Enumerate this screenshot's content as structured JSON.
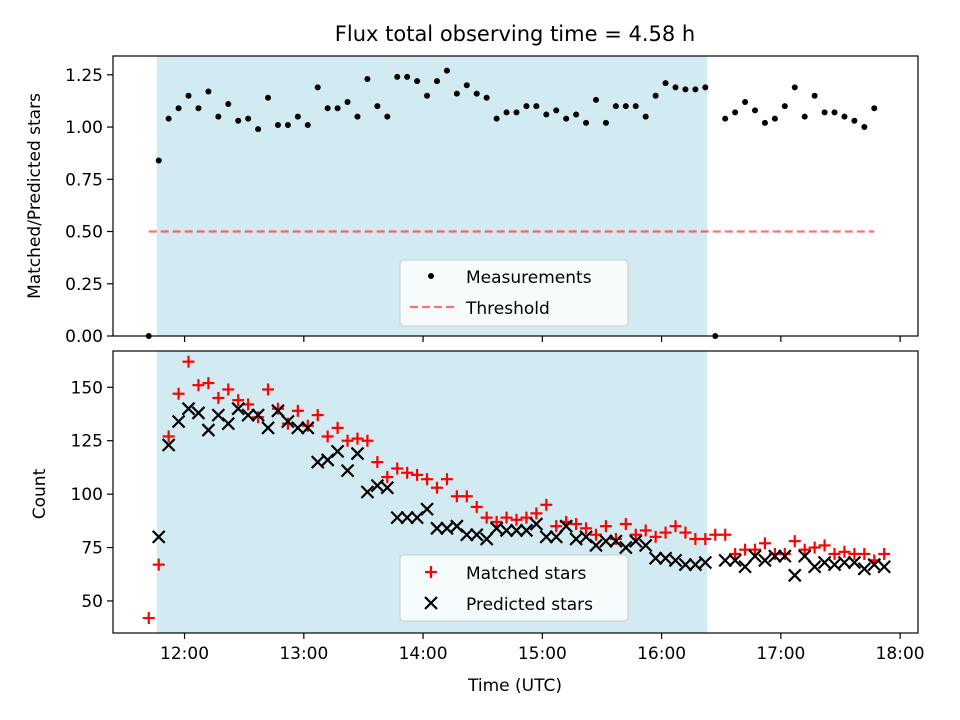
{
  "title": "Flux total observing time = 4.58 h",
  "xlabel": "Time (UTC)",
  "x_ticks": [
    "12:00",
    "13:00",
    "14:00",
    "15:00",
    "16:00",
    "17:00",
    "18:00"
  ],
  "colors": {
    "shade": "#add8e6",
    "measurement": "#000000",
    "threshold": "#ff0000",
    "matched": "#ff0000",
    "predicted": "#000000"
  },
  "chart_data": [
    {
      "type": "scatter",
      "ylabel": "Matched/Predicted stars",
      "xlim": [
        "11:24",
        "18:09"
      ],
      "ylim": [
        0,
        1.34
      ],
      "y_ticks": [
        "0.00",
        "0.25",
        "0.50",
        "0.75",
        "1.00",
        "1.25"
      ],
      "shaded_span": [
        "11:46",
        "16:23"
      ],
      "legend_position": "lower center",
      "legend": [
        "Measurements",
        "Threshold"
      ],
      "threshold": {
        "name": "Threshold",
        "y": 0.5,
        "x_range": [
          "11:42",
          "17:47"
        ],
        "style": "dashed"
      },
      "series": [
        {
          "name": "Measurements",
          "marker": "dot",
          "points": [
            [
              "11:42",
              0.0
            ],
            [
              "11:47",
              0.84
            ],
            [
              "11:52",
              1.04
            ],
            [
              "11:57",
              1.09
            ],
            [
              "12:02",
              1.15
            ],
            [
              "12:07",
              1.09
            ],
            [
              "12:12",
              1.17
            ],
            [
              "12:17",
              1.05
            ],
            [
              "12:22",
              1.11
            ],
            [
              "12:27",
              1.03
            ],
            [
              "12:32",
              1.04
            ],
            [
              "12:37",
              0.99
            ],
            [
              "12:42",
              1.14
            ],
            [
              "12:47",
              1.01
            ],
            [
              "12:52",
              1.01
            ],
            [
              "12:57",
              1.05
            ],
            [
              "13:02",
              1.01
            ],
            [
              "13:07",
              1.19
            ],
            [
              "13:12",
              1.09
            ],
            [
              "13:17",
              1.09
            ],
            [
              "13:22",
              1.12
            ],
            [
              "13:27",
              1.05
            ],
            [
              "13:32",
              1.23
            ],
            [
              "13:37",
              1.1
            ],
            [
              "13:42",
              1.05
            ],
            [
              "13:47",
              1.24
            ],
            [
              "13:52",
              1.24
            ],
            [
              "13:57",
              1.22
            ],
            [
              "14:02",
              1.15
            ],
            [
              "14:07",
              1.22
            ],
            [
              "14:12",
              1.27
            ],
            [
              "14:17",
              1.16
            ],
            [
              "14:22",
              1.2
            ],
            [
              "14:27",
              1.16
            ],
            [
              "14:32",
              1.14
            ],
            [
              "14:37",
              1.04
            ],
            [
              "14:42",
              1.07
            ],
            [
              "14:47",
              1.07
            ],
            [
              "14:52",
              1.1
            ],
            [
              "14:57",
              1.1
            ],
            [
              "15:02",
              1.06
            ],
            [
              "15:07",
              1.08
            ],
            [
              "15:12",
              1.04
            ],
            [
              "15:17",
              1.06
            ],
            [
              "15:22",
              1.02
            ],
            [
              "15:27",
              1.13
            ],
            [
              "15:32",
              1.02
            ],
            [
              "15:37",
              1.1
            ],
            [
              "15:42",
              1.1
            ],
            [
              "15:47",
              1.1
            ],
            [
              "15:52",
              1.05
            ],
            [
              "15:57",
              1.15
            ],
            [
              "16:02",
              1.21
            ],
            [
              "16:07",
              1.19
            ],
            [
              "16:12",
              1.18
            ],
            [
              "16:17",
              1.18
            ],
            [
              "16:22",
              1.19
            ],
            [
              "16:27",
              0.0
            ],
            [
              "16:32",
              1.04
            ],
            [
              "16:37",
              1.07
            ],
            [
              "16:42",
              1.12
            ],
            [
              "16:47",
              1.08
            ],
            [
              "16:52",
              1.02
            ],
            [
              "16:57",
              1.04
            ],
            [
              "17:02",
              1.1
            ],
            [
              "17:07",
              1.19
            ],
            [
              "17:12",
              1.05
            ],
            [
              "17:17",
              1.15
            ],
            [
              "17:22",
              1.07
            ],
            [
              "17:27",
              1.07
            ],
            [
              "17:32",
              1.05
            ],
            [
              "17:37",
              1.03
            ],
            [
              "17:42",
              1.0
            ],
            [
              "17:47",
              1.09
            ]
          ]
        }
      ]
    },
    {
      "type": "scatter",
      "ylabel": "Count",
      "xlim": [
        "11:24",
        "18:09"
      ],
      "ylim": [
        35,
        167
      ],
      "y_ticks": [
        "50",
        "75",
        "100",
        "125",
        "150"
      ],
      "shaded_span": [
        "11:46",
        "16:23"
      ],
      "legend_position": "lower center",
      "legend": [
        "Matched stars",
        "Predicted stars"
      ],
      "x_ticks": [
        "12:00",
        "13:00",
        "14:00",
        "15:00",
        "16:00",
        "17:00",
        "18:00"
      ],
      "series": [
        {
          "name": "Matched stars",
          "marker": "plus",
          "points": [
            [
              "11:42",
              42
            ],
            [
              "11:47",
              67
            ],
            [
              "11:52",
              127
            ],
            [
              "11:57",
              147
            ],
            [
              "12:02",
              162
            ],
            [
              "12:07",
              151
            ],
            [
              "12:12",
              152
            ],
            [
              "12:17",
              145
            ],
            [
              "12:22",
              149
            ],
            [
              "12:27",
              144
            ],
            [
              "12:32",
              142
            ],
            [
              "12:37",
              136
            ],
            [
              "12:42",
              149
            ],
            [
              "12:47",
              140
            ],
            [
              "12:52",
              133
            ],
            [
              "12:57",
              139
            ],
            [
              "13:02",
              132
            ],
            [
              "13:07",
              137
            ],
            [
              "13:12",
              127
            ],
            [
              "13:17",
              131
            ],
            [
              "13:22",
              125
            ],
            [
              "13:27",
              126
            ],
            [
              "13:32",
              125
            ],
            [
              "13:37",
              115
            ],
            [
              "13:42",
              108
            ],
            [
              "13:47",
              112
            ],
            [
              "13:52",
              110
            ],
            [
              "13:57",
              109
            ],
            [
              "14:02",
              107
            ],
            [
              "14:07",
              103
            ],
            [
              "14:12",
              107
            ],
            [
              "14:17",
              99
            ],
            [
              "14:22",
              99
            ],
            [
              "14:27",
              94
            ],
            [
              "14:32",
              89
            ],
            [
              "14:37",
              87
            ],
            [
              "14:42",
              89
            ],
            [
              "14:47",
              88
            ],
            [
              "14:52",
              89
            ],
            [
              "14:57",
              91
            ],
            [
              "15:02",
              95
            ],
            [
              "15:07",
              85
            ],
            [
              "15:12",
              87
            ],
            [
              "15:17",
              86
            ],
            [
              "15:22",
              84
            ],
            [
              "15:27",
              81
            ],
            [
              "15:32",
              85
            ],
            [
              "15:37",
              79
            ],
            [
              "15:42",
              86
            ],
            [
              "15:47",
              81
            ],
            [
              "15:52",
              83
            ],
            [
              "15:57",
              80
            ],
            [
              "16:02",
              82
            ],
            [
              "16:07",
              85
            ],
            [
              "16:12",
              82
            ],
            [
              "16:17",
              79
            ],
            [
              "16:22",
              79
            ],
            [
              "16:27",
              81
            ],
            [
              "16:32",
              81
            ],
            [
              "16:37",
              72
            ],
            [
              "16:42",
              74
            ],
            [
              "16:47",
              74
            ],
            [
              "16:52",
              77
            ],
            [
              "16:57",
              72
            ],
            [
              "17:02",
              72
            ],
            [
              "17:07",
              78
            ],
            [
              "17:12",
              74
            ],
            [
              "17:17",
              75
            ],
            [
              "17:22",
              76
            ],
            [
              "17:27",
              72
            ],
            [
              "17:32",
              73
            ],
            [
              "17:37",
              72
            ],
            [
              "17:42",
              72
            ],
            [
              "17:47",
              69
            ],
            [
              "17:52",
              72
            ]
          ]
        },
        {
          "name": "Predicted stars",
          "marker": "x",
          "points": [
            [
              "11:47",
              80
            ],
            [
              "11:52",
              123
            ],
            [
              "11:57",
              134
            ],
            [
              "12:02",
              140
            ],
            [
              "12:07",
              138
            ],
            [
              "12:12",
              130
            ],
            [
              "12:17",
              137
            ],
            [
              "12:22",
              133
            ],
            [
              "12:27",
              140
            ],
            [
              "12:32",
              137
            ],
            [
              "12:37",
              137
            ],
            [
              "12:42",
              131
            ],
            [
              "12:47",
              139
            ],
            [
              "12:52",
              134
            ],
            [
              "12:57",
              131
            ],
            [
              "13:02",
              131
            ],
            [
              "13:07",
              115
            ],
            [
              "13:12",
              116
            ],
            [
              "13:17",
              120
            ],
            [
              "13:22",
              111
            ],
            [
              "13:27",
              119
            ],
            [
              "13:32",
              101
            ],
            [
              "13:37",
              104
            ],
            [
              "13:42",
              103
            ],
            [
              "13:47",
              89
            ],
            [
              "13:52",
              89
            ],
            [
              "13:57",
              89
            ],
            [
              "14:02",
              93
            ],
            [
              "14:07",
              84
            ],
            [
              "14:12",
              84
            ],
            [
              "14:17",
              85
            ],
            [
              "14:22",
              81
            ],
            [
              "14:27",
              81
            ],
            [
              "14:32",
              79
            ],
            [
              "14:37",
              84
            ],
            [
              "14:42",
              83
            ],
            [
              "14:47",
              83
            ],
            [
              "14:52",
              83
            ],
            [
              "14:57",
              86
            ],
            [
              "15:02",
              80
            ],
            [
              "15:07",
              80
            ],
            [
              "15:12",
              85
            ],
            [
              "15:17",
              79
            ],
            [
              "15:22",
              80
            ],
            [
              "15:27",
              76
            ],
            [
              "15:32",
              78
            ],
            [
              "15:37",
              78
            ],
            [
              "15:42",
              75
            ],
            [
              "15:47",
              78
            ],
            [
              "15:52",
              76
            ],
            [
              "15:57",
              70
            ],
            [
              "16:02",
              70
            ],
            [
              "16:07",
              69
            ],
            [
              "16:12",
              67
            ],
            [
              "16:17",
              67
            ],
            [
              "16:22",
              68
            ],
            [
              "16:32",
              69
            ],
            [
              "16:37",
              69
            ],
            [
              "16:42",
              66
            ],
            [
              "16:47",
              71
            ],
            [
              "16:52",
              69
            ],
            [
              "16:57",
              71
            ],
            [
              "17:02",
              71
            ],
            [
              "17:07",
              62
            ],
            [
              "17:12",
              71
            ],
            [
              "17:17",
              66
            ],
            [
              "17:22",
              68
            ],
            [
              "17:27",
              67
            ],
            [
              "17:32",
              68
            ],
            [
              "17:37",
              68
            ],
            [
              "17:42",
              65
            ],
            [
              "17:47",
              67
            ],
            [
              "17:52",
              66
            ]
          ]
        }
      ]
    }
  ]
}
